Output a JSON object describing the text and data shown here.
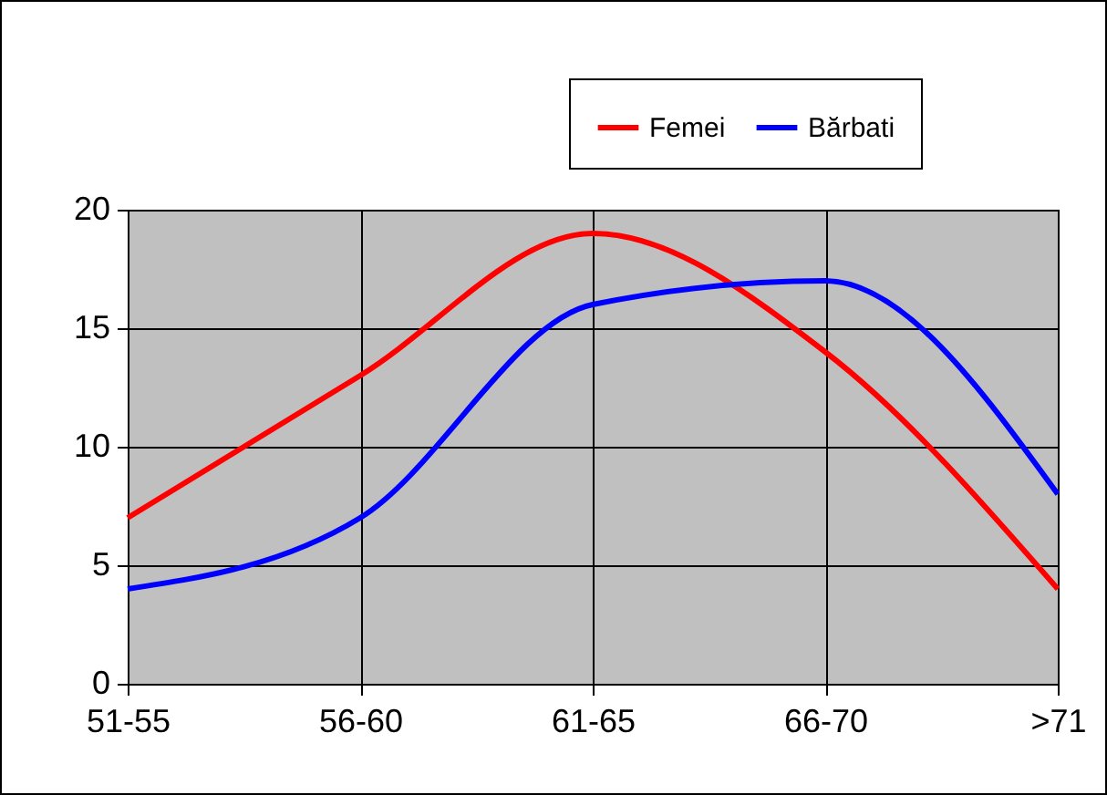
{
  "chart_data": {
    "type": "line",
    "categories": [
      "51-55",
      "56-60",
      "61-65",
      "66-70",
      ">71"
    ],
    "series": [
      {
        "name": "Femei",
        "color": "#ff0000",
        "values": [
          7,
          13,
          19,
          14,
          4
        ]
      },
      {
        "name": "Bărbati",
        "color": "#0000ff",
        "values": [
          4,
          7,
          16,
          17,
          8
        ]
      }
    ],
    "ylim": [
      0,
      20
    ],
    "yticks": [
      0,
      5,
      10,
      15,
      20
    ],
    "grid": true,
    "legend": "top right",
    "marker": "none",
    "line_style": "solid"
  }
}
